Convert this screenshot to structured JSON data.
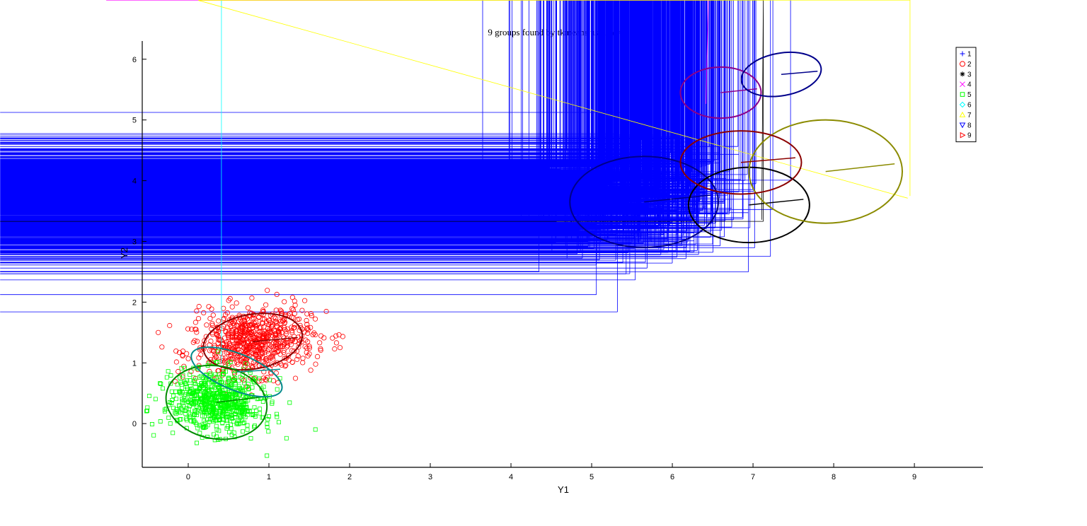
{
  "chart_data": {
    "type": "scatter",
    "title_prefix": "9 groups found by tkmeans using ",
    "title_symbol": "α",
    "title_suffix": "=0.00",
    "xlabel": "Y1",
    "ylabel": "Y2",
    "xlim": [
      -0.57,
      9.85
    ],
    "ylim": [
      -0.72,
      6.3
    ],
    "xticks": [
      0,
      1,
      2,
      3,
      4,
      5,
      6,
      7,
      8,
      9
    ],
    "yticks": [
      0,
      1,
      2,
      3,
      4,
      5,
      6
    ],
    "legend_position": "top-right",
    "series": [
      {
        "name": "1",
        "marker": "plus",
        "color": "#0000ff",
        "ellipse_color": "#00008b",
        "center": [
          5.65,
          3.65
        ],
        "radii": [
          0.92,
          0.75
        ],
        "spread": [
          1.15,
          0.9
        ],
        "count": 900,
        "rotation_deg": 0
      },
      {
        "name": "2",
        "marker": "circle",
        "color": "#ff0000",
        "ellipse_color": "#8b0000",
        "center": [
          0.8,
          1.35
        ],
        "radii": [
          0.62,
          0.45
        ],
        "spread": [
          0.75,
          0.55
        ],
        "count": 700,
        "rotation_deg": 10
      },
      {
        "name": "3",
        "marker": "star",
        "color": "#000000",
        "ellipse_color": "#000000",
        "center": [
          6.95,
          3.6
        ],
        "radii": [
          0.75,
          0.62
        ],
        "spread": [
          0.85,
          0.55
        ],
        "count": 700,
        "rotation_deg": 0
      },
      {
        "name": "4",
        "marker": "x",
        "color": "#ff00ff",
        "ellipse_color": "#8b008b",
        "center": [
          6.6,
          5.45
        ],
        "radii": [
          0.5,
          0.42
        ],
        "spread": [
          0.55,
          0.42
        ],
        "count": 500,
        "rotation_deg": 0
      },
      {
        "name": "5",
        "marker": "square",
        "color": "#00ff00",
        "ellipse_color": "#008b00",
        "center": [
          0.35,
          0.35
        ],
        "radii": [
          0.63,
          0.6
        ],
        "spread": [
          0.6,
          0.5
        ],
        "count": 700,
        "rotation_deg": -10
      },
      {
        "name": "6",
        "marker": "diamond",
        "color": "#00ffff",
        "ellipse_color": "#008b8b",
        "center": [
          0.6,
          0.85
        ],
        "radii": [
          0.6,
          0.3
        ],
        "spread": [
          0.62,
          0.32
        ],
        "count": 600,
        "rotation_deg": -22
      },
      {
        "name": "7",
        "marker": "triangle-up",
        "color": "#ffff00",
        "ellipse_color": "#8b8b00",
        "center": [
          7.9,
          4.15
        ],
        "radii": [
          0.95,
          0.85
        ],
        "spread": [
          1.05,
          0.85
        ],
        "count": 900,
        "rotation_deg": 0
      },
      {
        "name": "8",
        "marker": "triangle-down",
        "color": "#0000ff",
        "ellipse_color": "#00008b",
        "center": [
          7.35,
          5.75
        ],
        "radii": [
          0.5,
          0.35
        ],
        "spread": [
          0.65,
          0.38
        ],
        "count": 600,
        "rotation_deg": 10
      },
      {
        "name": "9",
        "marker": "triangle-right",
        "color": "#ff0000",
        "ellipse_color": "#8b0000",
        "center": [
          6.85,
          4.3
        ],
        "radii": [
          0.75,
          0.52
        ],
        "spread": [
          0.72,
          0.45
        ],
        "count": 700,
        "rotation_deg": 0
      }
    ]
  }
}
